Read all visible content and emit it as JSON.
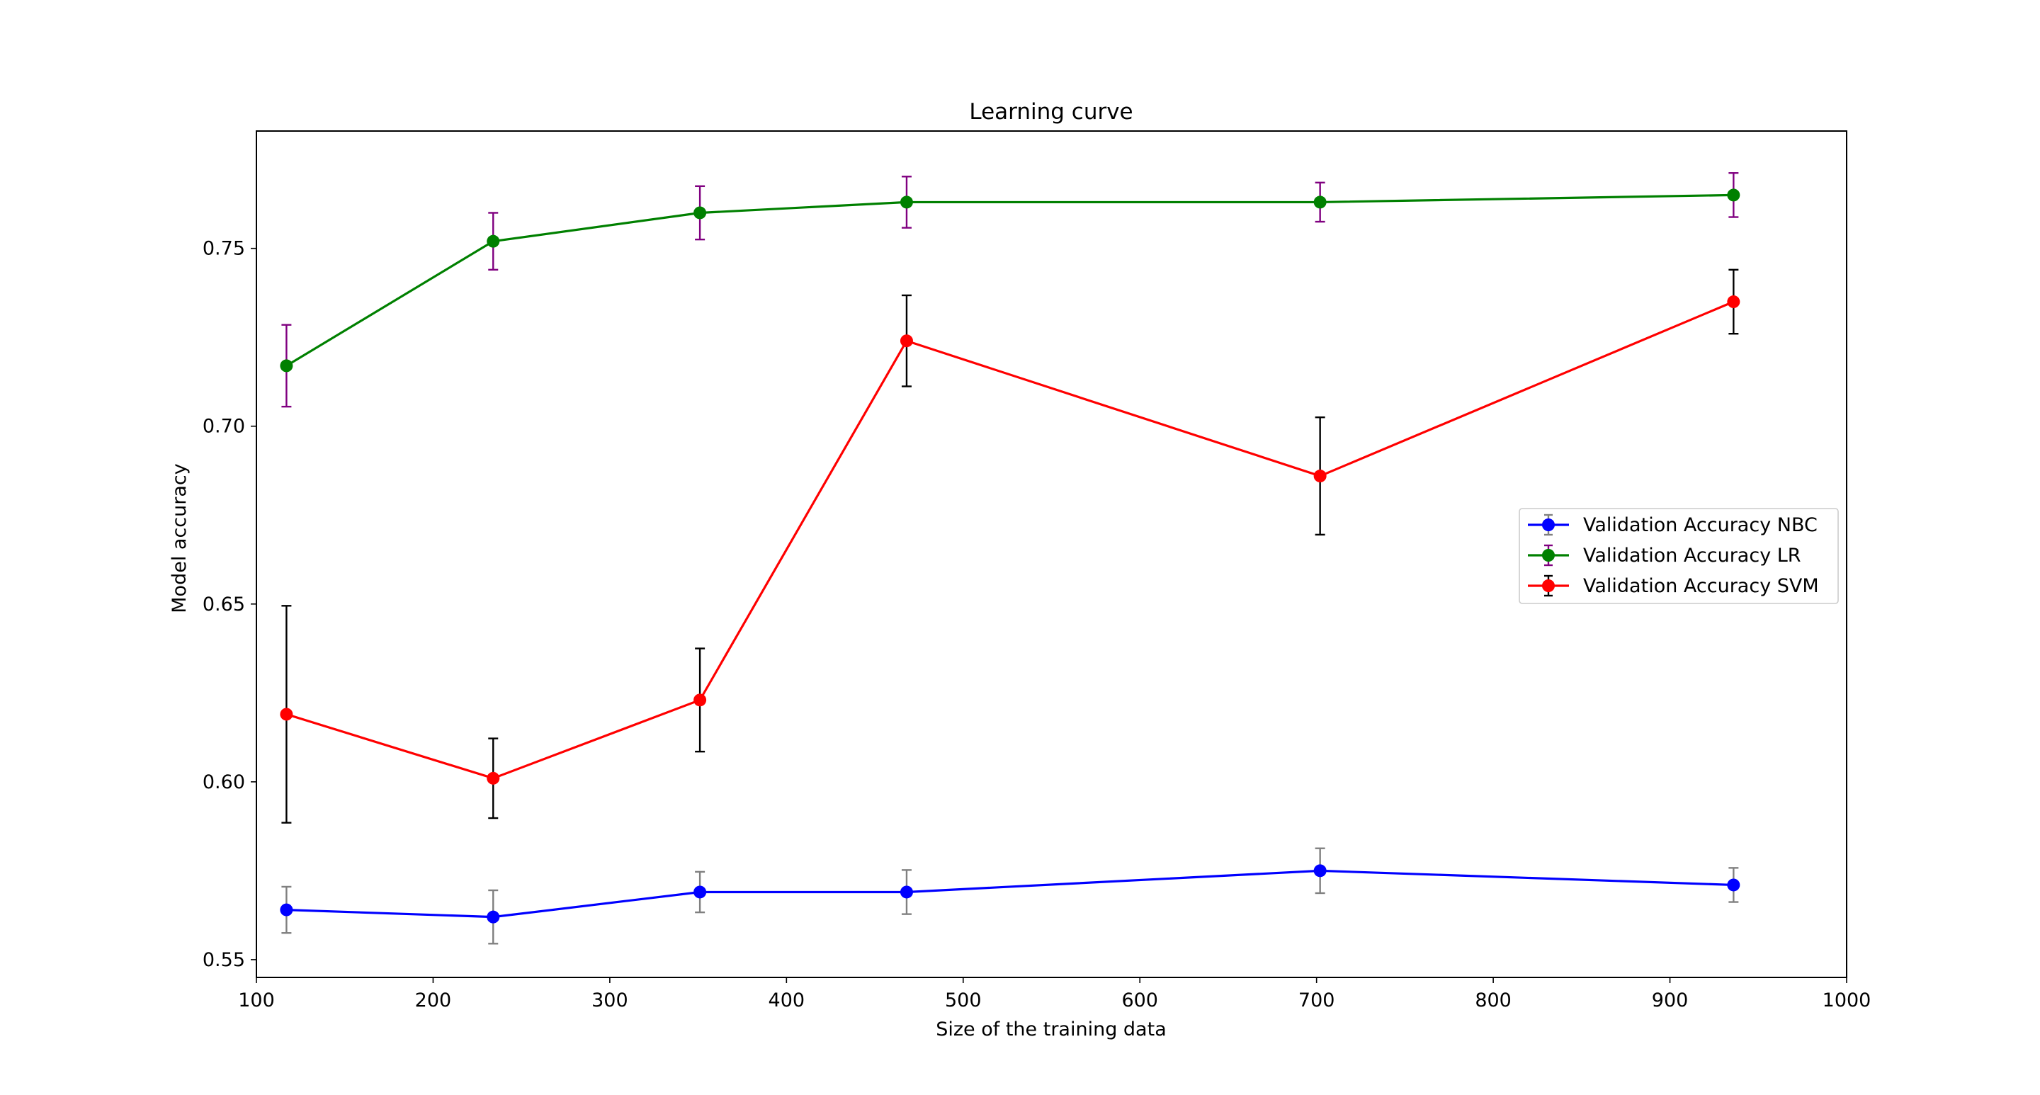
{
  "chart_data": {
    "type": "line",
    "title": "Learning curve",
    "xlabel": "Size of the training data",
    "ylabel": "Model accuracy",
    "xlim": [
      100,
      1000
    ],
    "ylim": [
      0.545,
      0.783
    ],
    "xticks": [
      100,
      200,
      300,
      400,
      500,
      600,
      700,
      800,
      900,
      1000
    ],
    "xtick_labels": [
      "100",
      "200",
      "300",
      "400",
      "500",
      "600",
      "700",
      "800",
      "900",
      "1000"
    ],
    "yticks": [
      0.55,
      0.6,
      0.65,
      0.7,
      0.75
    ],
    "ytick_labels": [
      "0.55",
      "0.60",
      "0.65",
      "0.70",
      "0.75"
    ],
    "grid": false,
    "legend_position": "center-right",
    "x": [
      117,
      234,
      351,
      468,
      702,
      936
    ],
    "series": [
      {
        "name": "Validation Accuracy NBC",
        "color": "#0000ff",
        "error_color": "#808080",
        "values": [
          0.564,
          0.562,
          0.569,
          0.569,
          0.575,
          0.571
        ],
        "errors": [
          0.0065,
          0.0075,
          0.0057,
          0.0062,
          0.0063,
          0.0048
        ]
      },
      {
        "name": "Validation Accuracy LR",
        "color": "#008000",
        "error_color": "#800080",
        "values": [
          0.717,
          0.752,
          0.76,
          0.763,
          0.763,
          0.765
        ],
        "errors": [
          0.0115,
          0.008,
          0.0075,
          0.0072,
          0.0055,
          0.0062
        ]
      },
      {
        "name": "Validation Accuracy SVM",
        "color": "#ff0000",
        "error_color": "#000000",
        "values": [
          0.619,
          0.601,
          0.623,
          0.724,
          0.686,
          0.735
        ],
        "errors": [
          0.0305,
          0.0112,
          0.0145,
          0.0128,
          0.0165,
          0.009
        ]
      }
    ]
  }
}
